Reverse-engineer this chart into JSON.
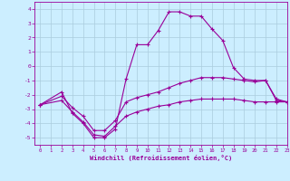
{
  "xlabel": "Windchill (Refroidissement éolien,°C)",
  "bg_color": "#cceeff",
  "grid_color": "#aaccdd",
  "line_color": "#990099",
  "xlim": [
    -0.5,
    23
  ],
  "ylim": [
    -5.5,
    4.5
  ],
  "xticks": [
    0,
    1,
    2,
    3,
    4,
    5,
    6,
    7,
    8,
    9,
    10,
    11,
    12,
    13,
    14,
    15,
    16,
    17,
    18,
    19,
    20,
    21,
    22,
    23
  ],
  "yticks": [
    -5,
    -4,
    -3,
    -2,
    -1,
    0,
    1,
    2,
    3,
    4
  ],
  "line1_x": [
    0,
    2,
    3,
    4,
    5,
    6,
    7,
    8,
    9,
    10,
    11,
    12,
    13,
    14,
    15,
    16,
    17,
    18,
    19,
    20,
    21,
    22,
    23
  ],
  "line1_y": [
    -2.7,
    -1.8,
    -3.3,
    -4.0,
    -5.0,
    -5.0,
    -4.4,
    -0.9,
    1.5,
    1.5,
    2.5,
    3.8,
    3.8,
    3.5,
    3.5,
    2.6,
    1.8,
    -0.1,
    -0.9,
    -1.0,
    -1.0,
    -2.4,
    -2.5
  ],
  "line2_x": [
    0,
    2,
    3,
    4,
    5,
    6,
    7,
    8,
    9,
    10,
    11,
    12,
    13,
    14,
    15,
    16,
    17,
    18,
    19,
    20,
    21,
    22,
    23
  ],
  "line2_y": [
    -2.7,
    -2.1,
    -2.9,
    -3.5,
    -4.5,
    -4.5,
    -3.8,
    -2.5,
    -2.2,
    -2.0,
    -1.8,
    -1.5,
    -1.2,
    -1.0,
    -0.8,
    -0.8,
    -0.8,
    -0.9,
    -1.0,
    -1.1,
    -1.0,
    -2.3,
    -2.5
  ],
  "line3_x": [
    0,
    2,
    3,
    4,
    5,
    6,
    7,
    8,
    9,
    10,
    11,
    12,
    13,
    14,
    15,
    16,
    17,
    18,
    19,
    20,
    21,
    22,
    23
  ],
  "line3_y": [
    -2.7,
    -2.4,
    -3.2,
    -3.9,
    -4.8,
    -4.9,
    -4.2,
    -3.5,
    -3.2,
    -3.0,
    -2.8,
    -2.7,
    -2.5,
    -2.4,
    -2.3,
    -2.3,
    -2.3,
    -2.3,
    -2.4,
    -2.5,
    -2.5,
    -2.5,
    -2.5
  ]
}
